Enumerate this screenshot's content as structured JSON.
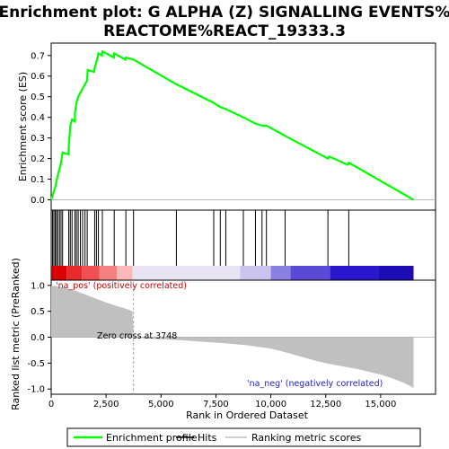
{
  "chart_data": {
    "type": "line",
    "title_line1": "Enrichment plot: G ALPHA (Z) SIGNALLING EVENTS%",
    "title_line2": "REACTOME%REACT_19333.3",
    "xlabel": "Rank in Ordered Dataset",
    "ylabel_top": "Enrichment score (ES)",
    "ylabel_bottom": "Ranked list metric (PreRanked)",
    "xlim": [
      0,
      17500
    ],
    "ylim_es": [
      -0.05,
      0.76
    ],
    "ylim_metric": [
      -1.1,
      1.1
    ],
    "x_ticks": [
      "0",
      "2,500",
      "5,000",
      "7,500",
      "10,000",
      "12,500",
      "15,000"
    ],
    "x_tick_values": [
      0,
      2500,
      5000,
      7500,
      10000,
      12500,
      15000
    ],
    "es_ticks": [
      "0.0",
      "0.1",
      "0.2",
      "0.3",
      "0.4",
      "0.5",
      "0.6",
      "0.7"
    ],
    "es_tick_values": [
      0.0,
      0.1,
      0.2,
      0.3,
      0.4,
      0.5,
      0.6,
      0.7
    ],
    "metric_ticks": [
      "1.0",
      "0.5",
      "0.0",
      "-0.5",
      "-1.0"
    ],
    "metric_tick_values": [
      1.0,
      0.5,
      0.0,
      -0.5,
      -1.0
    ],
    "annotations": {
      "pos": "'na_pos' (positively correlated)",
      "neg": "'na_neg' (negatively correlated)",
      "zero_cross": "Zero cross at 3748"
    },
    "zero_cross": 3748,
    "n_genes": 16500,
    "hits": [
      60,
      120,
      180,
      240,
      300,
      380,
      450,
      520,
      800,
      870,
      950,
      1080,
      1150,
      1230,
      1330,
      1430,
      1540,
      1640,
      1980,
      2060,
      2150,
      2330,
      2870,
      3400,
      3750,
      5700,
      7400,
      7700,
      7950,
      8750,
      9300,
      9600,
      9800,
      10650,
      12600,
      13550
    ],
    "es_curve": [
      [
        0,
        0.0
      ],
      [
        60,
        0.02
      ],
      [
        120,
        0.04
      ],
      [
        180,
        0.06
      ],
      [
        240,
        0.09
      ],
      [
        300,
        0.12
      ],
      [
        380,
        0.15
      ],
      [
        450,
        0.18
      ],
      [
        520,
        0.23
      ],
      [
        790,
        0.22
      ],
      [
        800,
        0.26
      ],
      [
        870,
        0.36
      ],
      [
        950,
        0.39
      ],
      [
        1080,
        0.38
      ],
      [
        1080,
        0.42
      ],
      [
        1150,
        0.47
      ],
      [
        1230,
        0.5
      ],
      [
        1330,
        0.52
      ],
      [
        1430,
        0.54
      ],
      [
        1540,
        0.56
      ],
      [
        1640,
        0.58
      ],
      [
        1660,
        0.63
      ],
      [
        1960,
        0.62
      ],
      [
        1980,
        0.64
      ],
      [
        2060,
        0.67
      ],
      [
        2150,
        0.71
      ],
      [
        2310,
        0.7
      ],
      [
        2330,
        0.72
      ],
      [
        2850,
        0.69
      ],
      [
        2870,
        0.71
      ],
      [
        3380,
        0.68
      ],
      [
        3400,
        0.69
      ],
      [
        3750,
        0.68
      ],
      [
        5700,
        0.56
      ],
      [
        7400,
        0.47
      ],
      [
        7700,
        0.45
      ],
      [
        7950,
        0.44
      ],
      [
        8750,
        0.4
      ],
      [
        9300,
        0.37
      ],
      [
        9600,
        0.36
      ],
      [
        9800,
        0.36
      ],
      [
        10650,
        0.31
      ],
      [
        12600,
        0.2
      ],
      [
        12650,
        0.21
      ],
      [
        13500,
        0.17
      ],
      [
        13550,
        0.18
      ],
      [
        16500,
        0.0
      ]
    ],
    "metric_curve": [
      [
        0,
        1.0
      ],
      [
        150,
        0.99
      ],
      [
        400,
        0.97
      ],
      [
        800,
        0.93
      ],
      [
        1200,
        0.88
      ],
      [
        1600,
        0.82
      ],
      [
        2000,
        0.75
      ],
      [
        2500,
        0.67
      ],
      [
        3000,
        0.6
      ],
      [
        3400,
        0.55
      ],
      [
        3700,
        0.5
      ],
      [
        3748,
        0.0
      ],
      [
        4200,
        -0.02
      ],
      [
        5000,
        -0.04
      ],
      [
        6000,
        -0.06
      ],
      [
        7000,
        -0.09
      ],
      [
        8000,
        -0.12
      ],
      [
        9000,
        -0.16
      ],
      [
        10000,
        -0.22
      ],
      [
        10500,
        -0.27
      ],
      [
        11000,
        -0.33
      ],
      [
        11500,
        -0.39
      ],
      [
        12000,
        -0.45
      ],
      [
        12500,
        -0.5
      ],
      [
        13000,
        -0.54
      ],
      [
        13500,
        -0.58
      ],
      [
        14000,
        -0.62
      ],
      [
        14500,
        -0.67
      ],
      [
        15000,
        -0.72
      ],
      [
        15500,
        -0.79
      ],
      [
        16000,
        -0.87
      ],
      [
        16300,
        -0.93
      ],
      [
        16500,
        -0.98
      ]
    ],
    "band_segments": [
      {
        "from": 0,
        "to": 200,
        "color": "#cc0000"
      },
      {
        "from": 200,
        "to": 700,
        "color": "#dd0000"
      },
      {
        "from": 700,
        "to": 1400,
        "color": "#e82a2a"
      },
      {
        "from": 1400,
        "to": 2200,
        "color": "#f05050"
      },
      {
        "from": 2200,
        "to": 3000,
        "color": "#f58080"
      },
      {
        "from": 3000,
        "to": 3700,
        "color": "#fbb8b8"
      },
      {
        "from": 3700,
        "to": 8600,
        "color": "#e8e4f4"
      },
      {
        "from": 8600,
        "to": 10000,
        "color": "#cac4ee"
      },
      {
        "from": 10000,
        "to": 10900,
        "color": "#8a80e0"
      },
      {
        "from": 10900,
        "to": 12700,
        "color": "#5a4ad6"
      },
      {
        "from": 12700,
        "to": 14900,
        "color": "#2a16cc"
      },
      {
        "from": 14900,
        "to": 16500,
        "color": "#1c0cb4"
      }
    ],
    "colors": {
      "es_line": "#00ff00",
      "hits": "#000000",
      "metric_fill": "#c0c0c0",
      "pos_text": "#cc0000",
      "neg_text": "#2222cc",
      "zero_line": "#aaaaaa"
    },
    "legend": [
      {
        "label": "Enrichment profile",
        "color": "#00ff00",
        "kind": "line"
      },
      {
        "label": "Hits",
        "color": "#000000",
        "kind": "line"
      },
      {
        "label": "Ranking metric scores",
        "color": "#c0c0c0",
        "kind": "line"
      }
    ]
  }
}
